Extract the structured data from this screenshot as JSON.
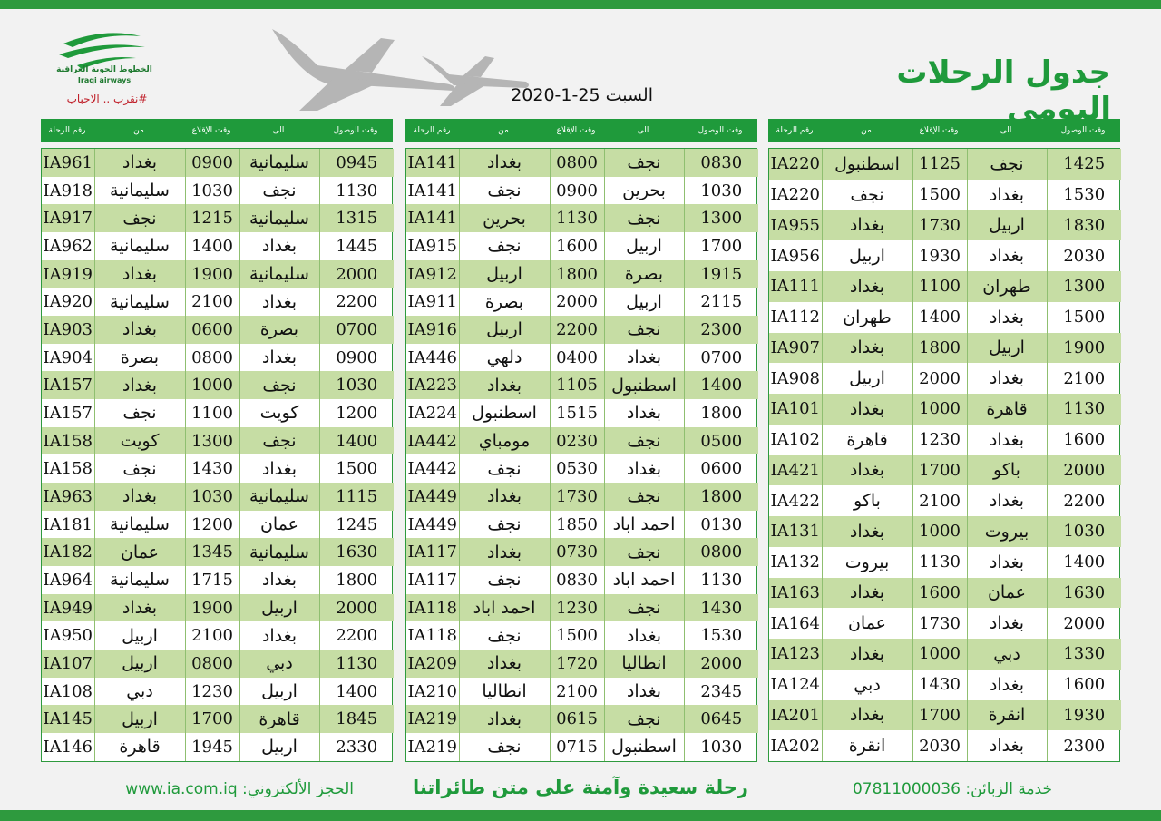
{
  "header": {
    "title": "جدول الرحلات اليومي",
    "date": "السبت 25-1-2020",
    "logo_name": "الخطوط الجوية العراقية",
    "logo_name_en": "Iraqi airways",
    "slogan": "#نقرب .. الاحباب"
  },
  "columns": [
    "رقم الرحلة",
    "من",
    "وقت الإقلاع",
    "الى",
    "وقت الوصول"
  ],
  "tables": [
    {
      "rows": [
        [
          "IA220",
          "اسطنبول",
          "1125",
          "نجف",
          "1425"
        ],
        [
          "IA220",
          "نجف",
          "1500",
          "بغداد",
          "1530"
        ],
        [
          "IA955",
          "بغداد",
          "1730",
          "اربيل",
          "1830"
        ],
        [
          "IA956",
          "اربيل",
          "1930",
          "بغداد",
          "2030"
        ],
        [
          "IA111",
          "بغداد",
          "1100",
          "طهران",
          "1300"
        ],
        [
          "IA112",
          "طهران",
          "1400",
          "بغداد",
          "1500"
        ],
        [
          "IA907",
          "بغداد",
          "1800",
          "اربيل",
          "1900"
        ],
        [
          "IA908",
          "اربيل",
          "2000",
          "بغداد",
          "2100"
        ],
        [
          "IA101",
          "بغداد",
          "1000",
          "قاهرة",
          "1130"
        ],
        [
          "IA102",
          "قاهرة",
          "1230",
          "بغداد",
          "1600"
        ],
        [
          "IA421",
          "بغداد",
          "1700",
          "باكو",
          "2000"
        ],
        [
          "IA422",
          "باكو",
          "2100",
          "بغداد",
          "2200"
        ],
        [
          "IA131",
          "بغداد",
          "1000",
          "بيروت",
          "1030"
        ],
        [
          "IA132",
          "بيروت",
          "1130",
          "بغداد",
          "1400"
        ],
        [
          "IA163",
          "بغداد",
          "1600",
          "عمان",
          "1630"
        ],
        [
          "IA164",
          "عمان",
          "1730",
          "بغداد",
          "2000"
        ],
        [
          "IA123",
          "بغداد",
          "1000",
          "دبي",
          "1330"
        ],
        [
          "IA124",
          "دبي",
          "1430",
          "بغداد",
          "1600"
        ],
        [
          "IA201",
          "بغداد",
          "1700",
          "انقرة",
          "1930"
        ],
        [
          "IA202",
          "انقرة",
          "2030",
          "بغداد",
          "2300"
        ]
      ]
    },
    {
      "rows": [
        [
          "IA141",
          "بغداد",
          "0800",
          "نجف",
          "0830"
        ],
        [
          "IA141",
          "نجف",
          "0900",
          "بحرين",
          "1030"
        ],
        [
          "IA141",
          "بحرين",
          "1130",
          "نجف",
          "1300"
        ],
        [
          "IA915",
          "نجف",
          "1600",
          "اربيل",
          "1700"
        ],
        [
          "IA912",
          "اربيل",
          "1800",
          "بصرة",
          "1915"
        ],
        [
          "IA911",
          "بصرة",
          "2000",
          "اربيل",
          "2115"
        ],
        [
          "IA916",
          "اربيل",
          "2200",
          "نجف",
          "2300"
        ],
        [
          "IA446",
          "دلهي",
          "0400",
          "بغداد",
          "0700"
        ],
        [
          "IA223",
          "بغداد",
          "1105",
          "اسطنبول",
          "1400"
        ],
        [
          "IA224",
          "اسطنبول",
          "1515",
          "بغداد",
          "1800"
        ],
        [
          "IA442",
          "مومباي",
          "0230",
          "نجف",
          "0500"
        ],
        [
          "IA442",
          "نجف",
          "0530",
          "بغداد",
          "0600"
        ],
        [
          "IA449",
          "بغداد",
          "1730",
          "نجف",
          "1800"
        ],
        [
          "IA449",
          "نجف",
          "1850",
          "احمد اباد",
          "0130"
        ],
        [
          "IA117",
          "بغداد",
          "0730",
          "نجف",
          "0800"
        ],
        [
          "IA117",
          "نجف",
          "0830",
          "احمد اباد",
          "1130"
        ],
        [
          "IA118",
          "احمد اباد",
          "1230",
          "نجف",
          "1430"
        ],
        [
          "IA118",
          "نجف",
          "1500",
          "بغداد",
          "1530"
        ],
        [
          "IA209",
          "بغداد",
          "1720",
          "انطاليا",
          "2000"
        ],
        [
          "IA210",
          "انطاليا",
          "2100",
          "بغداد",
          "2345"
        ],
        [
          "IA219",
          "بغداد",
          "0615",
          "نجف",
          "0645"
        ],
        [
          "IA219",
          "نجف",
          "0715",
          "اسطنبول",
          "1030"
        ]
      ]
    },
    {
      "rows": [
        [
          "IA961",
          "بغداد",
          "0900",
          "سليمانية",
          "0945"
        ],
        [
          "IA918",
          "سليمانية",
          "1030",
          "نجف",
          "1130"
        ],
        [
          "IA917",
          "نجف",
          "1215",
          "سليمانية",
          "1315"
        ],
        [
          "IA962",
          "سليمانية",
          "1400",
          "بغداد",
          "1445"
        ],
        [
          "IA919",
          "بغداد",
          "1900",
          "سليمانية",
          "2000"
        ],
        [
          "IA920",
          "سليمانية",
          "2100",
          "بغداد",
          "2200"
        ],
        [
          "IA903",
          "بغداد",
          "0600",
          "بصرة",
          "0700"
        ],
        [
          "IA904",
          "بصرة",
          "0800",
          "بغداد",
          "0900"
        ],
        [
          "IA157",
          "بغداد",
          "1000",
          "نجف",
          "1030"
        ],
        [
          "IA157",
          "نجف",
          "1100",
          "كويت",
          "1200"
        ],
        [
          "IA158",
          "كويت",
          "1300",
          "نجف",
          "1400"
        ],
        [
          "IA158",
          "نجف",
          "1430",
          "بغداد",
          "1500"
        ],
        [
          "IA963",
          "بغداد",
          "1030",
          "سليمانية",
          "1115"
        ],
        [
          "IA181",
          "سليمانية",
          "1200",
          "عمان",
          "1245"
        ],
        [
          "IA182",
          "عمان",
          "1345",
          "سليمانية",
          "1630"
        ],
        [
          "IA964",
          "سليمانية",
          "1715",
          "بغداد",
          "1800"
        ],
        [
          "IA949",
          "بغداد",
          "1900",
          "اربيل",
          "2000"
        ],
        [
          "IA950",
          "اربيل",
          "2100",
          "بغداد",
          "2200"
        ],
        [
          "IA107",
          "اربيل",
          "0800",
          "دبي",
          "1130"
        ],
        [
          "IA108",
          "دبي",
          "1230",
          "اربيل",
          "1400"
        ],
        [
          "IA145",
          "اربيل",
          "1700",
          "قاهرة",
          "1845"
        ],
        [
          "IA146",
          "قاهرة",
          "1945",
          "اربيل",
          "2330"
        ]
      ]
    }
  ],
  "footer": {
    "service_label": "خدمة الزبائن:",
    "service_phone": "07811000036",
    "tagline": "رحلة سعيدة وآمنة على متن طائراتنا",
    "booking_label": "الحجز الألكتروني:",
    "booking_url": "www.ia.com.iq"
  }
}
